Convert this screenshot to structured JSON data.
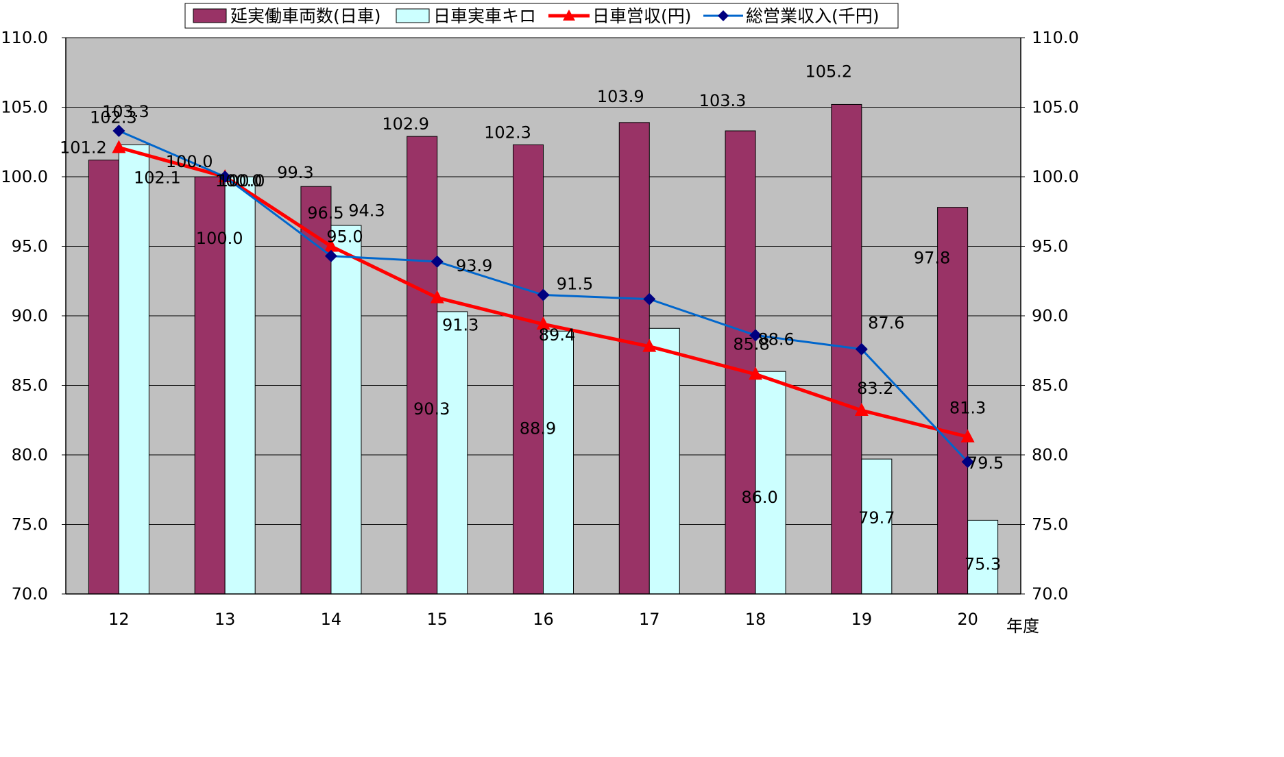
{
  "chart_data": {
    "type": "bar",
    "categories": [
      "12",
      "13",
      "14",
      "15",
      "16",
      "17",
      "18",
      "19",
      "20"
    ],
    "xlabel": "年度",
    "ylim": [
      70.0,
      110.0
    ],
    "y_ticks": [
      "70.0",
      "75.0",
      "80.0",
      "85.0",
      "90.0",
      "95.0",
      "100.0",
      "105.0",
      "110.0"
    ],
    "y2_ticks": [
      "70.0",
      "75.0",
      "80.0",
      "85.0",
      "90.0",
      "95.0",
      "100.0",
      "105.0",
      "110.0"
    ],
    "grid": true,
    "legend_position": "top",
    "series": [
      {
        "name": "延実働車両数(日車)",
        "kind": "bar",
        "color": "#993366",
        "values": [
          101.2,
          100.0,
          99.3,
          102.9,
          102.3,
          103.9,
          103.3,
          105.2,
          97.8
        ],
        "labels": [
          "101.2",
          "100.0",
          "99.3",
          "102.9",
          "102.3",
          "103.9",
          "103.3",
          "105.2",
          "97.8"
        ]
      },
      {
        "name": "日車実車キロ",
        "kind": "bar",
        "color": "#ccffff",
        "values": [
          102.3,
          100.0,
          96.5,
          90.3,
          88.9,
          89.1,
          86.0,
          79.7,
          75.3
        ],
        "labels": [
          "102.3",
          "100.0",
          "96.5",
          "90.3",
          "88.9",
          "",
          "86.0",
          "79.7",
          "75.3"
        ]
      },
      {
        "name": "日車営収(円)",
        "kind": "line",
        "color": "#ff0000",
        "marker": "triangle",
        "values": [
          102.1,
          100.0,
          95.0,
          91.3,
          89.4,
          87.8,
          85.8,
          83.2,
          81.3
        ],
        "labels": [
          "102.1",
          "100.0",
          "95.0",
          "91.3",
          "89.4",
          "",
          "85.8",
          "83.2",
          "81.3"
        ]
      },
      {
        "name": "総営業収入(千円)",
        "kind": "line",
        "color": "#0066cc",
        "marker": "diamond",
        "values": [
          103.3,
          100.0,
          94.3,
          93.9,
          91.5,
          91.2,
          88.6,
          87.6,
          79.5
        ],
        "labels": [
          "103.3",
          "100.0",
          "94.3",
          "93.9",
          "91.5",
          "",
          "88.6",
          "87.6",
          "79.5"
        ]
      }
    ]
  },
  "colors": {
    "plot_background": "#c0c0c0",
    "grid": "#000000",
    "bar_outline": "#000000",
    "line_marker_diamond": "#000080"
  }
}
